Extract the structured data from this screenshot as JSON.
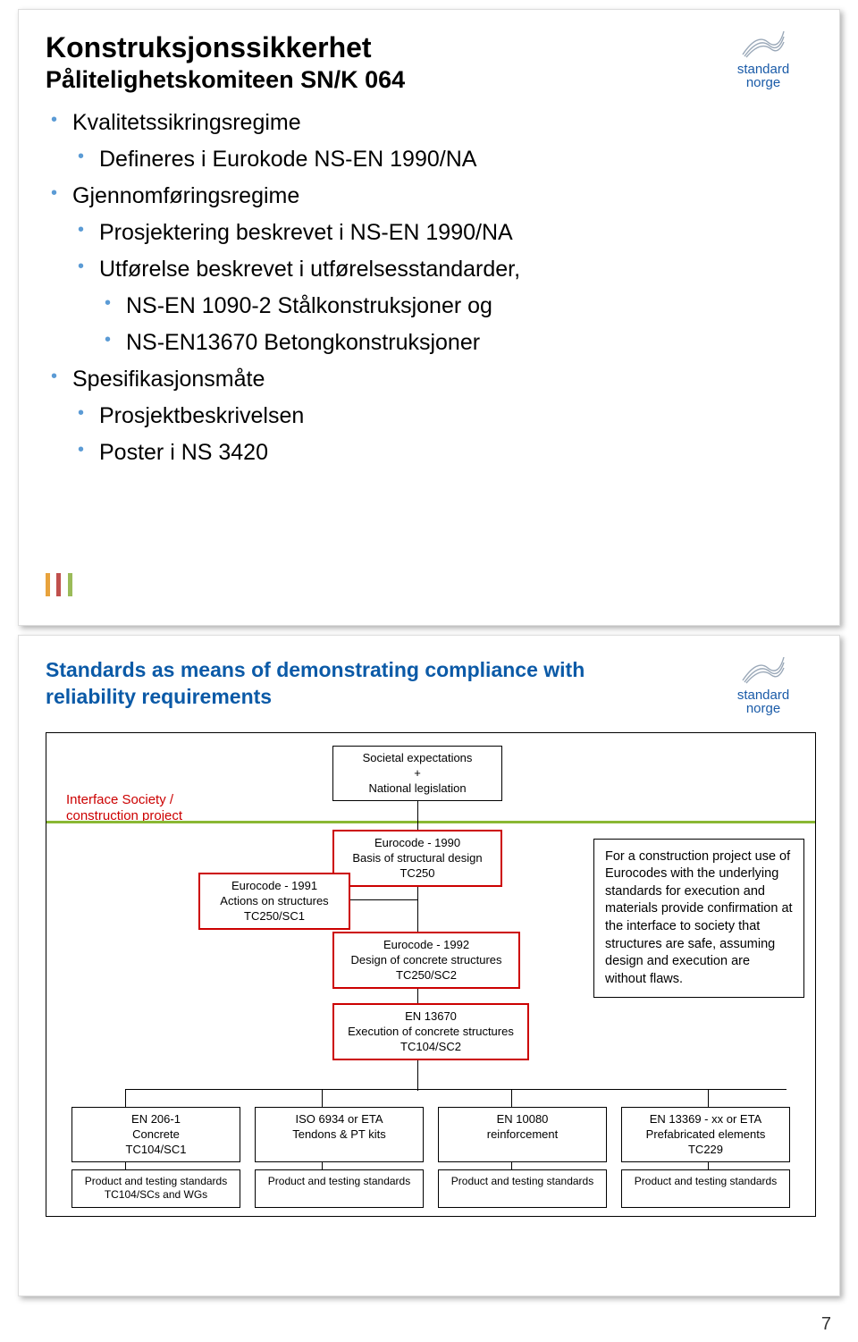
{
  "slide1": {
    "title": "Konstruksjonssikkerhet",
    "subtitle": "Pålitelighetskomiteen SN/K 064",
    "bullets": {
      "b1": "Kvalitetssikringsregime",
      "b1a": "Defineres i Eurokode NS-EN 1990/NA",
      "b2": "Gjennomføringsregime",
      "b2a": "Prosjektering beskrevet i NS-EN 1990/NA",
      "b2b": "Utførelse beskrevet i utførelsesstandarder,",
      "b2b1": "NS-EN 1090-2 Stålkonstruksjoner og",
      "b2b2": "NS-EN13670 Betongkonstruksjoner",
      "b3": "Spesifikasjonsmåte",
      "b3a": "Prosjektbeskrivelsen",
      "b3b": "Poster i NS 3420"
    },
    "accent_colors": [
      "#e8a33d",
      "#c0504d",
      "#9bbb59"
    ]
  },
  "slide2": {
    "title1": "Standards  as means of demonstrating compliance with",
    "title2": "reliability requirements",
    "iface_label": "Interface Society /\nconstruction project",
    "green_line_color": "#8ab833",
    "societal": "Societal expectations\n+\nNational legislation",
    "ec1990": "Eurocode - 1990\nBasis of structural design\nTC250",
    "ec1991": "Eurocode - 1991\nActions on structures\nTC250/SC1",
    "ec1992": "Eurocode - 1992\nDesign of concrete structures\nTC250/SC2",
    "en13670": "EN 13670\nExecution of concrete structures\nTC104/SC2",
    "flaws": "For a construction project use of Eurocodes with the underlying standards for execution and materials provide confirmation at the interface to society that structures are safe, assuming design and execution are without flaws.",
    "row1": {
      "c1": "EN 206-1\nConcrete\nTC104/SC1",
      "c2": "ISO 6934 or ETA\nTendons & PT kits",
      "c3": "EN 10080\nreinforcement",
      "c4": "EN 13369 - xx or ETA\nPrefabricated elements\nTC229"
    },
    "row2": {
      "c1": "Product and testing standards\nTC104/SCs and WGs",
      "c2": "Product and testing standards",
      "c3": "Product and testing standards",
      "c4": "Product and testing standards"
    }
  },
  "logo": {
    "line1": "standard",
    "line2": "norge"
  },
  "page_number": "7"
}
